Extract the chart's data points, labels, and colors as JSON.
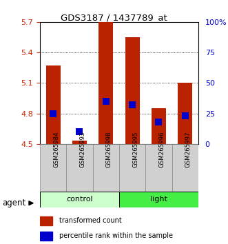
{
  "title": "GDS3187 / 1437789_at",
  "samples": [
    "GSM265984",
    "GSM265993",
    "GSM265998",
    "GSM265995",
    "GSM265996",
    "GSM265997"
  ],
  "groups": [
    "control",
    "control",
    "control",
    "light",
    "light",
    "light"
  ],
  "group_labels": [
    "control",
    "light"
  ],
  "group_colors_light": [
    "#ccffcc",
    "#44ee44"
  ],
  "bar_color": "#bb2200",
  "dot_color": "#0000cc",
  "transformed_counts": [
    5.27,
    4.53,
    5.7,
    5.55,
    4.85,
    5.1
  ],
  "percentile_ranks_pct": [
    25,
    10,
    35,
    32,
    18,
    23
  ],
  "ylim_left": [
    4.5,
    5.7
  ],
  "ylim_right": [
    0,
    100
  ],
  "yticks_left": [
    4.5,
    4.8,
    5.1,
    5.4,
    5.7
  ],
  "ytick_labels_left": [
    "4.5",
    "4.8",
    "5.1",
    "5.4",
    "5.7"
  ],
  "ytick_right_positions": [
    0,
    25,
    50,
    75,
    100
  ],
  "ytick_labels_right": [
    "0",
    "25",
    "50",
    "75",
    "100%"
  ],
  "grid_values": [
    4.8,
    5.1,
    5.4
  ],
  "baseline": 4.5,
  "bar_width": 0.55,
  "dot_size": 55,
  "legend_items": [
    "transformed count",
    "percentile rank within the sample"
  ],
  "legend_colors": [
    "#bb2200",
    "#0000cc"
  ],
  "agent_label": "agent",
  "left_tick_color": "#cc2200",
  "right_tick_color": "#0000cc",
  "sample_box_color": "#d0d0d0",
  "sample_box_edge": "#888888"
}
